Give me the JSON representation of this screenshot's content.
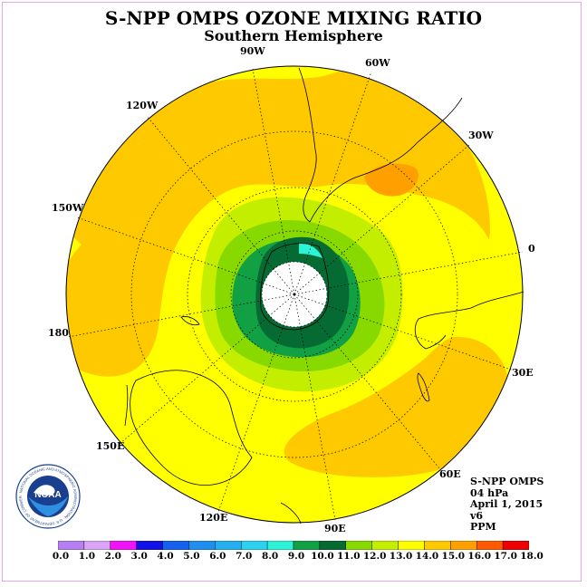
{
  "header": {
    "title": "S-NPP OMPS OZONE MIXING RATIO",
    "subtitle": "Southern Hemisphere"
  },
  "map": {
    "projection": "polar stereographic, south pole centred",
    "longitude_labels": [
      "90W",
      "60W",
      "30W",
      "0",
      "30E",
      "60E",
      "90E",
      "120E",
      "150E",
      "180",
      "150W",
      "120W"
    ],
    "pole_cap_color": "#ffffff"
  },
  "info": {
    "line1": "S-NPP OMPS",
    "line2": "04 hPa",
    "line3": "April 1, 2015",
    "line4": "v6",
    "line5": "PPM"
  },
  "logo": {
    "text": "NOAA",
    "ring_text": "NATIONAL OCEANIC AND ATMOSPHERIC ADMINISTRATION · U.S. DEPARTMENT OF COMMERCE",
    "icon": "noaa-seal-icon"
  },
  "colorbar": {
    "labels": [
      "0.0",
      "1.0",
      "2.0",
      "3.0",
      "4.0",
      "5.0",
      "6.0",
      "7.0",
      "8.0",
      "9.0",
      "10.0",
      "11.0",
      "12.0",
      "13.0",
      "14.0",
      "15.0",
      "16.0",
      "17.0",
      "18.0"
    ],
    "colors": [
      "#b57ff2",
      "#daa4f7",
      "#f013f5",
      "#1111e8",
      "#1561ee",
      "#1f8eef",
      "#25aef0",
      "#2ed0f0",
      "#2cf2d6",
      "#11a043",
      "#066b33",
      "#88d900",
      "#c4ee00",
      "#ffff00",
      "#ffc900",
      "#ff9f00",
      "#ff5a00",
      "#ee0000",
      "#8a5530"
    ]
  }
}
